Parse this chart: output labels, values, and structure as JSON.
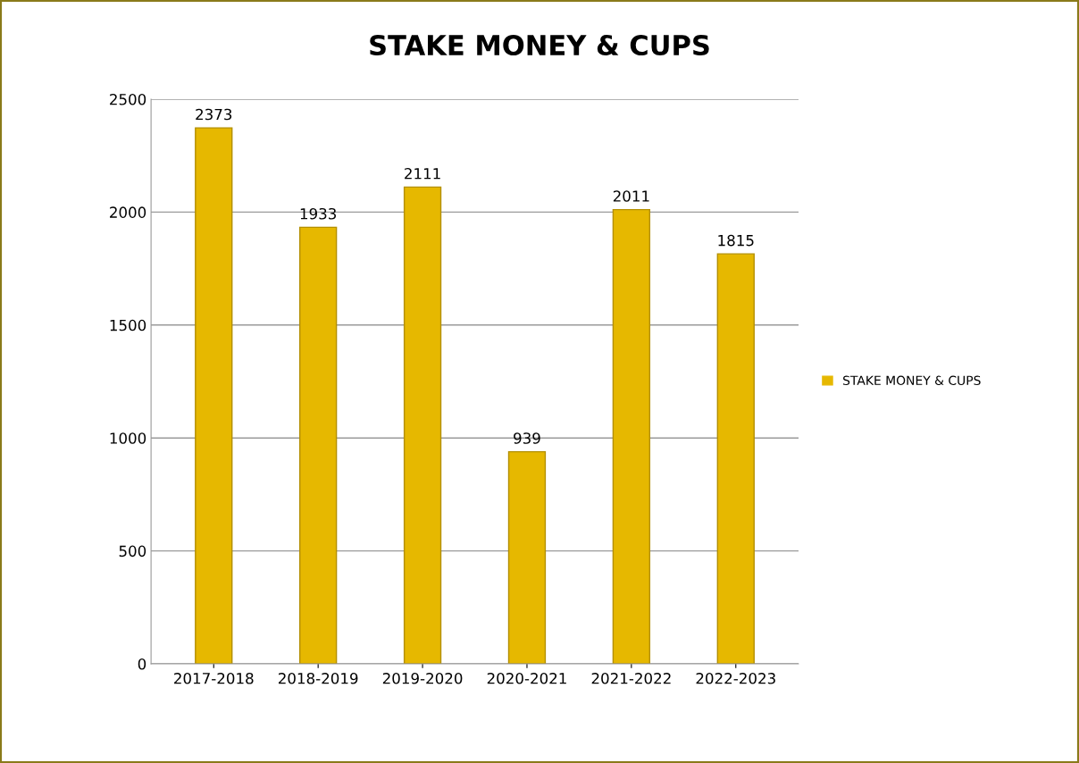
{
  "chart_data": {
    "type": "bar",
    "title": "STAKE MONEY & CUPS",
    "categories": [
      "2017-2018",
      "2018-2019",
      "2019-2020",
      "2020-2021",
      "2021-2022",
      "2022-2023"
    ],
    "series": [
      {
        "name": "STAKE MONEY & CUPS",
        "color": "#e6b800",
        "values": [
          2373,
          1933,
          2111,
          939,
          2011,
          1815
        ]
      }
    ],
    "ylim": [
      0,
      2500
    ],
    "yticks": [
      0,
      500,
      1000,
      1500,
      2000,
      2500
    ],
    "grid": "y",
    "legend": "right",
    "data_labels": true
  }
}
